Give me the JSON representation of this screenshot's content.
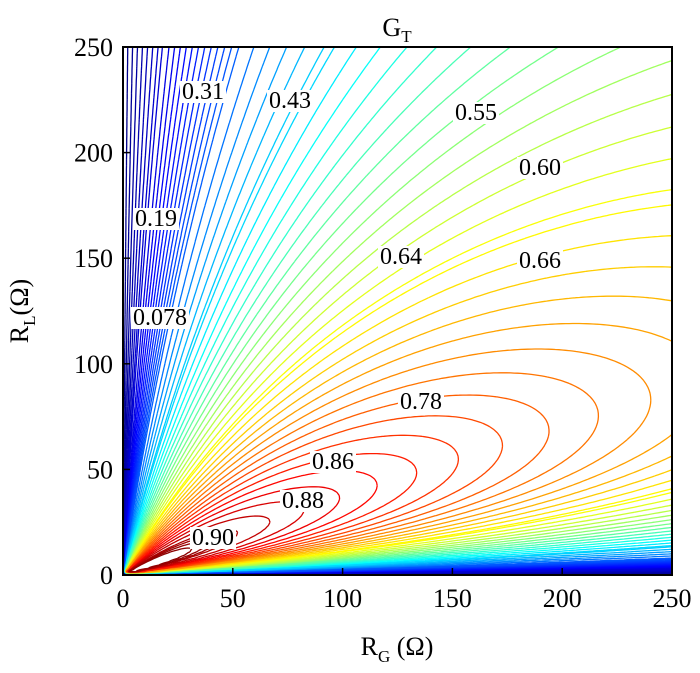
{
  "chart_data": {
    "type": "contour",
    "title": {
      "main": "G",
      "sub": "T"
    },
    "x_label": {
      "main": "R",
      "sub": "G",
      "unit": " (Ω)"
    },
    "y_label": {
      "main": "R",
      "sub": "L",
      "unit": "(Ω)"
    },
    "xlim": [
      0,
      250
    ],
    "ylim": [
      0,
      250
    ],
    "xticks": [
      0,
      50,
      100,
      150,
      200,
      250
    ],
    "yticks": [
      0,
      50,
      100,
      150,
      200,
      250
    ],
    "levels": [
      0.01,
      0.02,
      0.03,
      0.04,
      0.05,
      0.06,
      0.07,
      0.09,
      0.1,
      0.11,
      0.12,
      0.13,
      0.14,
      0.15,
      0.16,
      0.17,
      0.18,
      0.2,
      0.22,
      0.24,
      0.26,
      0.28,
      0.3,
      0.33,
      0.35,
      0.37,
      0.39,
      0.41,
      0.45,
      0.47,
      0.49,
      0.51,
      0.53,
      0.57,
      0.58,
      0.62,
      0.68,
      0.7,
      0.72,
      0.74,
      0.76,
      0.8,
      0.82,
      0.84,
      0.89,
      0.91
    ],
    "contour_labels": [
      0.078,
      0.19,
      0.31,
      0.43,
      0.55,
      {
        "value": 0.6,
        "label": "0.60"
      },
      0.64,
      0.66,
      0.78,
      0.86,
      0.88,
      {
        "value": 0.9,
        "label": "0.90"
      }
    ]
  }
}
